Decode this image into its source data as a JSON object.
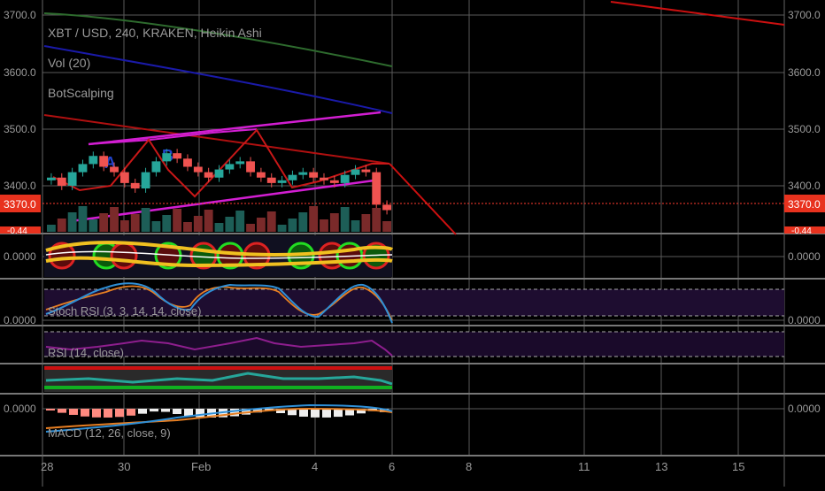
{
  "colors": {
    "background": "#000000",
    "grid": "#5a5a5a",
    "axis_text": "#9a9a9a",
    "price_line": "#ff3b30",
    "ema_green": "#2e6b2e",
    "ema_blue": "#1a1aa8",
    "ema_red": "#b01010",
    "trend_magenta": "#d21ed2",
    "candle_up": "#26a69a",
    "candle_down": "#ef5350",
    "stoch_k": "#2f8fd6",
    "stoch_d": "#e67e22",
    "rsi": "#8e1e8e",
    "rsi_band": "#1a0a2a",
    "macd_line": "#2f8fd6",
    "signal_line": "#e67e22"
  },
  "header": {
    "symbol_line": "XBT / USD, 240, KRAKEN, Heikin Ashi",
    "vol_label": "Vol (20)",
    "strategy_label": "BotScalping"
  },
  "panes": {
    "scalp_label": "",
    "stoch_label": "Stoch RSI (3, 3, 14, 14, close)",
    "rsi_label": "RSI (14, close)",
    "cm_label": "",
    "macd_label": "MACD (12, 26, close, 9)"
  },
  "price_axis": {
    "ticks": [
      "3700.0",
      "3600.0",
      "3500.0",
      "3400.0"
    ],
    "current_price": "3370.0",
    "cut_price": "-0.44"
  },
  "pane_axis": {
    "scalp_value": "0.0000",
    "stoch_value": "0.0000",
    "macd_value": "0.0000"
  },
  "time_axis": {
    "ticks": [
      "28",
      "30",
      "Feb",
      "4",
      "6",
      "8",
      "11",
      "13",
      "15"
    ]
  },
  "chart_data": {
    "type": "candlestick",
    "title": "XBT / USD, 240, KRAKEN, Heikin Ashi",
    "interval": "240",
    "ylim": [
      3330,
      3730
    ],
    "x_ticks": [
      "28",
      "30",
      "Feb",
      "4",
      "6",
      "8",
      "11",
      "13",
      "15"
    ],
    "current_price": 3370.0,
    "close_approx": [
      3430,
      3415,
      3440,
      3455,
      3470,
      3450,
      3440,
      3420,
      3410,
      3440,
      3460,
      3475,
      3465,
      3450,
      3440,
      3430,
      3445,
      3455,
      3460,
      3440,
      3430,
      3420,
      3425,
      3435,
      3440,
      3430,
      3425,
      3420,
      3435,
      3445,
      3440,
      3380,
      3370
    ]
  }
}
